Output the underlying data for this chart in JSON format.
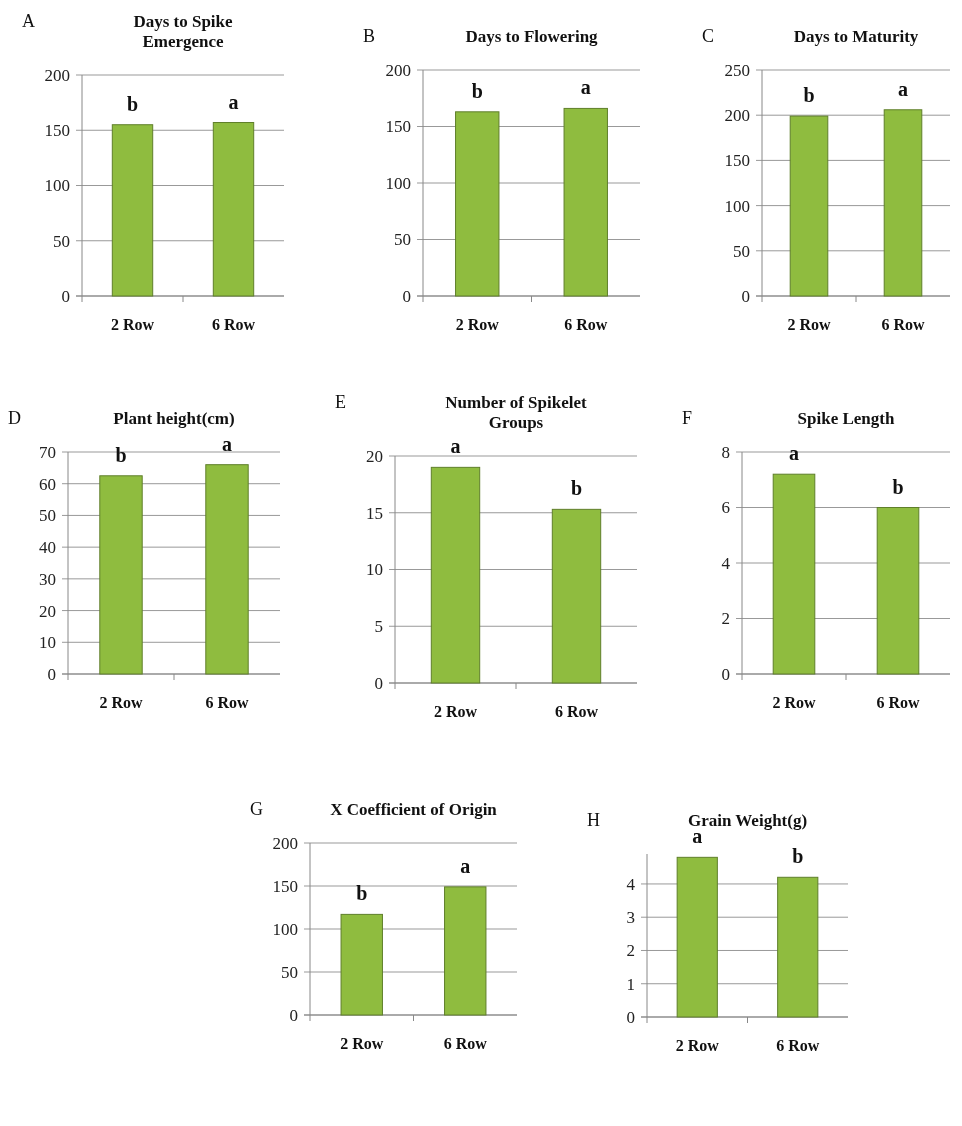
{
  "chart_data": [
    {
      "type": "bar",
      "title": "Days to Spike Emergence",
      "categories": [
        "2 Row",
        "6 Row"
      ],
      "values": [
        155,
        157
      ],
      "color": "#8fbc3f",
      "ylim": [
        0,
        200
      ],
      "yticks": [
        0,
        50,
        100,
        150,
        200
      ],
      "grid": "y",
      "annotations": [
        "A",
        {
          "text": "b",
          "x": "2 Row",
          "y": 155
        },
        {
          "text": "a",
          "x": "6 Row",
          "y": 157
        }
      ]
    },
    {
      "type": "bar",
      "title": "Days to Flowering",
      "categories": [
        "2 Row",
        "6 Row"
      ],
      "values": [
        163,
        166
      ],
      "color": "#8fbc3f",
      "ylim": [
        0,
        200
      ],
      "yticks": [
        0,
        50,
        100,
        150,
        200
      ],
      "grid": "y",
      "annotations": [
        "B",
        {
          "text": "b",
          "x": "2 Row",
          "y": 163
        },
        {
          "text": "a",
          "x": "6 Row",
          "y": 166
        }
      ]
    },
    {
      "type": "bar",
      "title": "Days to Maturity",
      "categories": [
        "2 Row",
        "6 Row"
      ],
      "values": [
        199,
        206
      ],
      "color": "#8fbc3f",
      "ylim": [
        0,
        250
      ],
      "yticks": [
        0,
        50,
        100,
        150,
        200,
        250
      ],
      "grid": "y",
      "annotations": [
        "C",
        {
          "text": "b",
          "x": "2 Row",
          "y": 199
        },
        {
          "text": "a",
          "x": "6 Row",
          "y": 206
        }
      ]
    },
    {
      "type": "bar",
      "title": "Plant height(cm)",
      "categories": [
        "2 Row",
        "6 Row"
      ],
      "values": [
        62.5,
        66
      ],
      "color": "#8fbc3f",
      "ylim": [
        0,
        70
      ],
      "yticks": [
        0,
        10,
        20,
        30,
        40,
        50,
        60,
        70
      ],
      "grid": "y",
      "annotations": [
        "D",
        {
          "text": "b",
          "x": "2 Row",
          "y": 62.5
        },
        {
          "text": "a",
          "x": "6 Row",
          "y": 66
        }
      ]
    },
    {
      "type": "bar",
      "title": "Number of Spikelet Groups",
      "categories": [
        "2 Row",
        "6 Row"
      ],
      "values": [
        19,
        15.3
      ],
      "color": "#8fbc3f",
      "ylim": [
        0,
        20
      ],
      "yticks": [
        0,
        5,
        10,
        15,
        20
      ],
      "grid": "y",
      "annotations": [
        "E",
        {
          "text": "a",
          "x": "2 Row",
          "y": 19
        },
        {
          "text": "b",
          "x": "6 Row",
          "y": 15.3
        }
      ]
    },
    {
      "type": "bar",
      "title": "Spike Length",
      "categories": [
        "2 Row",
        "6 Row"
      ],
      "values": [
        7.2,
        6.0
      ],
      "color": "#8fbc3f",
      "ylim": [
        0,
        8
      ],
      "yticks": [
        0,
        2,
        4,
        6,
        8
      ],
      "grid": "y",
      "annotations": [
        "F",
        {
          "text": "a",
          "x": "2 Row",
          "y": 7.2
        },
        {
          "text": "b",
          "x": "6 Row",
          "y": 6.0
        }
      ]
    },
    {
      "type": "bar",
      "title": "X Coefficient of Origin",
      "categories": [
        "2 Row",
        "6 Row"
      ],
      "values": [
        117,
        149
      ],
      "color": "#8fbc3f",
      "ylim": [
        0,
        200
      ],
      "yticks": [
        0,
        50,
        100,
        150,
        200
      ],
      "grid": "y",
      "annotations": [
        "G",
        {
          "text": "b",
          "x": "2 Row",
          "y": 117
        },
        {
          "text": "a",
          "x": "6 Row",
          "y": 149
        }
      ]
    },
    {
      "type": "bar",
      "title": "Grain Weight(g)",
      "categories": [
        "2 Row",
        "6 Row"
      ],
      "values": [
        4.8,
        4.2
      ],
      "color": "#8fbc3f",
      "ylim": [
        0,
        4.9
      ],
      "yticks": [
        0,
        1,
        2,
        3,
        4
      ],
      "grid": "y",
      "annotations": [
        "H",
        {
          "text": "a",
          "x": "2 Row",
          "y": 4.8
        },
        {
          "text": "b",
          "x": "6 Row",
          "y": 4.2
        }
      ]
    }
  ]
}
